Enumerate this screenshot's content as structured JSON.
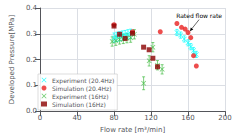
{
  "chart_data": {
    "type": "scatter",
    "xlabel": "Flow rate [m³/min]",
    "ylabel": "Developed Pressure[MPa]",
    "xlim": [
      0,
      200
    ],
    "ylim": [
      0.0,
      0.4
    ],
    "xticks": [
      0,
      40,
      80,
      120,
      160,
      200
    ],
    "yticks": [
      {
        "value": 0.0,
        "label": "0.0"
      },
      0.1,
      0.2,
      0.3,
      0.4
    ],
    "grid": true,
    "legend": "lower left",
    "annotations": [
      {
        "text": "Rated flow rate",
        "xy": [
          162,
          0.31
        ],
        "xytext": [
          172,
          0.355
        ]
      }
    ],
    "series": [
      {
        "name": "Experiment (20.4Hz)",
        "color": "cyan",
        "marker": "x",
        "x": [
          80,
          83,
          86,
          89,
          92,
          95,
          98,
          148,
          152,
          156,
          160,
          163,
          166,
          169
        ],
        "values": [
          0.285,
          0.288,
          0.29,
          0.293,
          0.295,
          0.298,
          0.3,
          0.305,
          0.295,
          0.28,
          0.265,
          0.25,
          0.235,
          0.22
        ],
        "yerr": [
          0.018,
          0.018,
          0.018,
          0.018,
          0.018,
          0.018,
          0.018,
          0.012,
          0.012,
          0.012,
          0.012,
          0.012,
          0.012,
          0.012
        ]
      },
      {
        "name": "Simulation (20.4Hz)",
        "color": "#e82020",
        "marker": "o",
        "x": [
          80,
          100,
          130,
          148,
          153,
          157,
          160,
          163,
          166,
          169
        ],
        "values": [
          0.335,
          0.308,
          0.308,
          0.34,
          0.325,
          0.318,
          0.305,
          0.285,
          0.215,
          0.175
        ]
      },
      {
        "name": "Experiment (16Hz)",
        "color": "#44bb44",
        "marker": "x",
        "x": [
          78,
          82,
          86,
          90,
          94,
          98,
          102,
          112,
          118,
          122,
          127,
          132
        ],
        "values": [
          0.27,
          0.273,
          0.278,
          0.28,
          0.283,
          0.285,
          0.298,
          0.108,
          0.195,
          0.248,
          0.178,
          0.162
        ],
        "yerr": [
          0.018,
          0.018,
          0.018,
          0.018,
          0.018,
          0.018,
          0.018,
          0.025,
          0.02,
          0.018,
          0.018,
          0.018
        ]
      },
      {
        "name": "Simulation (16Hz)",
        "color": "#8b0000",
        "marker": "s",
        "x": [
          80,
          86,
          92,
          100,
          112,
          118,
          122,
          127
        ],
        "values": [
          0.33,
          0.298,
          0.282,
          0.302,
          0.248,
          0.238,
          0.205,
          0.172
        ]
      }
    ]
  }
}
